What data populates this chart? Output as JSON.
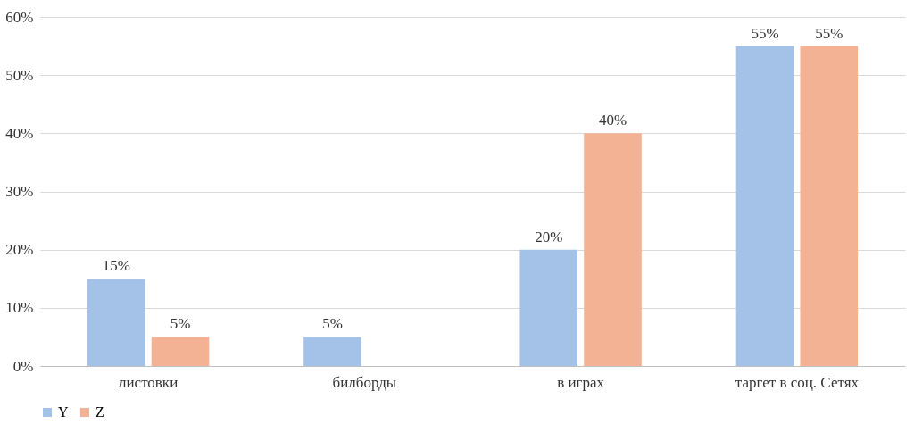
{
  "chart_data": {
    "type": "bar",
    "categories": [
      "листовки",
      "билборды",
      "в играх",
      "таргет в соц. Сетях"
    ],
    "series": [
      {
        "name": "Y",
        "color": "#a4c2e8",
        "values": [
          15,
          5,
          20,
          55
        ],
        "value_labels": [
          "15%",
          "5%",
          "20%",
          "55%"
        ]
      },
      {
        "name": "Z",
        "color": "#f4b294",
        "values": [
          5,
          null,
          40,
          55
        ],
        "value_labels": [
          "5%",
          null,
          "40%",
          "55%"
        ]
      }
    ],
    "ylim": [
      0,
      60
    ],
    "yticks": [
      {
        "value": 0,
        "label": "0%"
      },
      {
        "value": 10,
        "label": "10%"
      },
      {
        "value": 20,
        "label": "20%"
      },
      {
        "value": 30,
        "label": "30%"
      },
      {
        "value": 40,
        "label": "40%"
      },
      {
        "value": 50,
        "label": "50%"
      },
      {
        "value": 60,
        "label": "60%"
      }
    ],
    "grid": "y",
    "legend": "bottom"
  }
}
